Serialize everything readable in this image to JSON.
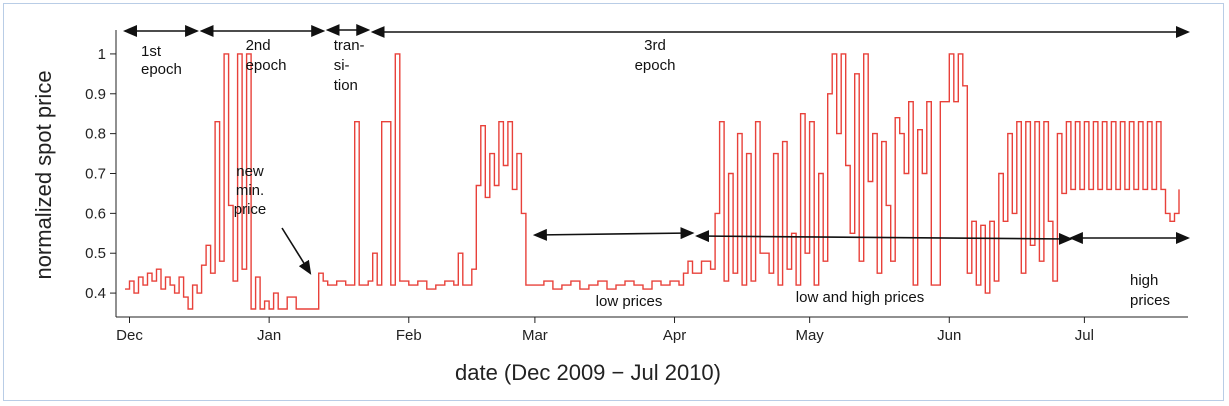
{
  "chart_data": {
    "type": "line",
    "xlabel": "date (Dec 2009 − Jul 2010)",
    "ylabel": "normalized spot price",
    "x_domain": [
      "2009-11-28",
      "2010-07-24"
    ],
    "ylim": [
      0.34,
      1.06
    ],
    "grid": false,
    "legend": "none",
    "x_ticks": [
      {
        "label": "Dec",
        "date": "2009-12-01"
      },
      {
        "label": "Jan",
        "date": "2010-01-01"
      },
      {
        "label": "Feb",
        "date": "2010-02-01"
      },
      {
        "label": "Mar",
        "date": "2010-03-01"
      },
      {
        "label": "Apr",
        "date": "2010-04-01"
      },
      {
        "label": "May",
        "date": "2010-05-01"
      },
      {
        "label": "Jun",
        "date": "2010-06-01"
      },
      {
        "label": "Jul",
        "date": "2010-07-01"
      }
    ],
    "y_ticks": [
      0.4,
      0.5,
      0.6,
      0.7,
      0.8,
      0.9,
      1
    ],
    "y_tick_labels": [
      "0.4",
      "0.5",
      "0.6",
      "0.7",
      "0.8",
      "0.9",
      "1"
    ],
    "series_color": "#e8413a",
    "series": [
      {
        "points": [
          [
            "2009-11-30",
            0.41
          ],
          [
            "2009-12-01",
            0.43
          ],
          [
            "2009-12-02",
            0.4
          ],
          [
            "2009-12-03",
            0.44
          ],
          [
            "2009-12-04",
            0.42
          ],
          [
            "2009-12-05",
            0.45
          ],
          [
            "2009-12-06",
            0.43
          ],
          [
            "2009-12-07",
            0.46
          ],
          [
            "2009-12-08",
            0.41
          ],
          [
            "2009-12-09",
            0.44
          ],
          [
            "2009-12-10",
            0.42
          ],
          [
            "2009-12-11",
            0.4
          ],
          [
            "2009-12-12",
            0.44
          ],
          [
            "2009-12-13",
            0.39
          ],
          [
            "2009-12-14",
            0.36
          ],
          [
            "2009-12-15",
            0.42
          ],
          [
            "2009-12-16",
            0.4
          ],
          [
            "2009-12-17",
            0.47
          ],
          [
            "2009-12-18",
            0.52
          ],
          [
            "2009-12-19",
            0.45
          ],
          [
            "2009-12-20",
            0.83
          ],
          [
            "2009-12-21",
            0.48
          ],
          [
            "2009-12-22",
            1.0
          ],
          [
            "2009-12-23",
            0.62
          ],
          [
            "2009-12-24",
            0.43
          ],
          [
            "2009-12-25",
            1.0
          ],
          [
            "2009-12-26",
            0.46
          ],
          [
            "2009-12-27",
            1.0
          ],
          [
            "2009-12-28",
            0.36
          ],
          [
            "2009-12-29",
            0.44
          ],
          [
            "2009-12-30",
            0.36
          ],
          [
            "2009-12-31",
            0.38
          ],
          [
            "2010-01-01",
            0.36
          ],
          [
            "2010-01-02",
            0.4
          ],
          [
            "2010-01-03",
            0.36
          ],
          [
            "2010-01-05",
            0.39
          ],
          [
            "2010-01-07",
            0.36
          ],
          [
            "2010-01-09",
            0.36
          ],
          [
            "2010-01-11",
            0.36
          ],
          [
            "2010-01-12",
            0.45
          ],
          [
            "2010-01-13",
            0.43
          ],
          [
            "2010-01-14",
            0.42
          ],
          [
            "2010-01-16",
            0.43
          ],
          [
            "2010-01-18",
            0.42
          ],
          [
            "2010-01-20",
            0.83
          ],
          [
            "2010-01-21",
            0.42
          ],
          [
            "2010-01-23",
            0.43
          ],
          [
            "2010-01-24",
            0.5
          ],
          [
            "2010-01-25",
            0.42
          ],
          [
            "2010-01-26",
            0.83
          ],
          [
            "2010-01-27",
            0.83
          ],
          [
            "2010-01-28",
            0.42
          ],
          [
            "2010-01-29",
            1.0
          ],
          [
            "2010-01-30",
            0.43
          ],
          [
            "2010-02-01",
            0.42
          ],
          [
            "2010-02-03",
            0.43
          ],
          [
            "2010-02-05",
            0.41
          ],
          [
            "2010-02-07",
            0.42
          ],
          [
            "2010-02-09",
            0.43
          ],
          [
            "2010-02-11",
            0.42
          ],
          [
            "2010-02-12",
            0.5
          ],
          [
            "2010-02-13",
            0.42
          ],
          [
            "2010-02-15",
            0.46
          ],
          [
            "2010-02-16",
            0.67
          ],
          [
            "2010-02-17",
            0.82
          ],
          [
            "2010-02-18",
            0.64
          ],
          [
            "2010-02-19",
            0.75
          ],
          [
            "2010-02-20",
            0.67
          ],
          [
            "2010-02-21",
            0.83
          ],
          [
            "2010-02-22",
            0.72
          ],
          [
            "2010-02-23",
            0.83
          ],
          [
            "2010-02-24",
            0.66
          ],
          [
            "2010-02-25",
            0.75
          ],
          [
            "2010-02-26",
            0.6
          ],
          [
            "2010-02-27",
            0.42
          ],
          [
            "2010-03-01",
            0.42
          ],
          [
            "2010-03-03",
            0.43
          ],
          [
            "2010-03-05",
            0.41
          ],
          [
            "2010-03-07",
            0.42
          ],
          [
            "2010-03-09",
            0.43
          ],
          [
            "2010-03-11",
            0.41
          ],
          [
            "2010-03-13",
            0.42
          ],
          [
            "2010-03-15",
            0.43
          ],
          [
            "2010-03-17",
            0.41
          ],
          [
            "2010-03-19",
            0.42
          ],
          [
            "2010-03-21",
            0.43
          ],
          [
            "2010-03-23",
            0.42
          ],
          [
            "2010-03-25",
            0.41
          ],
          [
            "2010-03-27",
            0.43
          ],
          [
            "2010-03-29",
            0.42
          ],
          [
            "2010-03-31",
            0.43
          ],
          [
            "2010-04-02",
            0.42
          ],
          [
            "2010-04-03",
            0.45
          ],
          [
            "2010-04-04",
            0.48
          ],
          [
            "2010-04-05",
            0.45
          ],
          [
            "2010-04-07",
            0.48
          ],
          [
            "2010-04-09",
            0.46
          ],
          [
            "2010-04-10",
            0.6
          ],
          [
            "2010-04-11",
            0.83
          ],
          [
            "2010-04-12",
            0.43
          ],
          [
            "2010-04-13",
            0.7
          ],
          [
            "2010-04-14",
            0.45
          ],
          [
            "2010-04-15",
            0.8
          ],
          [
            "2010-04-16",
            0.42
          ],
          [
            "2010-04-17",
            0.75
          ],
          [
            "2010-04-18",
            0.43
          ],
          [
            "2010-04-19",
            0.83
          ],
          [
            "2010-04-20",
            0.5
          ],
          [
            "2010-04-22",
            0.45
          ],
          [
            "2010-04-23",
            0.75
          ],
          [
            "2010-04-24",
            0.42
          ],
          [
            "2010-04-25",
            0.78
          ],
          [
            "2010-04-26",
            0.46
          ],
          [
            "2010-04-27",
            0.55
          ],
          [
            "2010-04-28",
            0.42
          ],
          [
            "2010-04-29",
            0.85
          ],
          [
            "2010-04-30",
            0.5
          ],
          [
            "2010-05-01",
            0.83
          ],
          [
            "2010-05-02",
            0.42
          ],
          [
            "2010-05-03",
            0.7
          ],
          [
            "2010-05-04",
            0.48
          ],
          [
            "2010-05-05",
            0.9
          ],
          [
            "2010-05-06",
            1.0
          ],
          [
            "2010-05-07",
            0.8
          ],
          [
            "2010-05-08",
            1.0
          ],
          [
            "2010-05-09",
            0.72
          ],
          [
            "2010-05-10",
            0.55
          ],
          [
            "2010-05-11",
            0.95
          ],
          [
            "2010-05-12",
            0.48
          ],
          [
            "2010-05-13",
            1.0
          ],
          [
            "2010-05-14",
            0.68
          ],
          [
            "2010-05-15",
            0.8
          ],
          [
            "2010-05-16",
            0.45
          ],
          [
            "2010-05-17",
            0.78
          ],
          [
            "2010-05-18",
            0.62
          ],
          [
            "2010-05-19",
            0.48
          ],
          [
            "2010-05-20",
            0.84
          ],
          [
            "2010-05-21",
            0.8
          ],
          [
            "2010-05-22",
            0.7
          ],
          [
            "2010-05-23",
            0.88
          ],
          [
            "2010-05-24",
            0.42
          ],
          [
            "2010-05-25",
            0.81
          ],
          [
            "2010-05-26",
            0.7
          ],
          [
            "2010-05-27",
            0.88
          ],
          [
            "2010-05-28",
            0.42
          ],
          [
            "2010-05-30",
            0.88
          ],
          [
            "2010-06-01",
            1.0
          ],
          [
            "2010-06-02",
            0.88
          ],
          [
            "2010-06-03",
            1.0
          ],
          [
            "2010-06-04",
            0.92
          ],
          [
            "2010-06-05",
            0.45
          ],
          [
            "2010-06-06",
            0.58
          ],
          [
            "2010-06-07",
            0.42
          ],
          [
            "2010-06-08",
            0.57
          ],
          [
            "2010-06-09",
            0.4
          ],
          [
            "2010-06-10",
            0.58
          ],
          [
            "2010-06-11",
            0.43
          ],
          [
            "2010-06-12",
            0.7
          ],
          [
            "2010-06-13",
            0.58
          ],
          [
            "2010-06-14",
            0.8
          ],
          [
            "2010-06-15",
            0.6
          ],
          [
            "2010-06-16",
            0.83
          ],
          [
            "2010-06-17",
            0.45
          ],
          [
            "2010-06-18",
            0.83
          ],
          [
            "2010-06-19",
            0.52
          ],
          [
            "2010-06-20",
            0.83
          ],
          [
            "2010-06-21",
            0.48
          ],
          [
            "2010-06-22",
            0.83
          ],
          [
            "2010-06-23",
            0.58
          ],
          [
            "2010-06-24",
            0.43
          ],
          [
            "2010-06-25",
            0.8
          ],
          [
            "2010-06-26",
            0.65
          ],
          [
            "2010-06-27",
            0.83
          ],
          [
            "2010-06-28",
            0.66
          ],
          [
            "2010-06-29",
            0.83
          ],
          [
            "2010-06-30",
            0.66
          ],
          [
            "2010-07-01",
            0.83
          ],
          [
            "2010-07-02",
            0.66
          ],
          [
            "2010-07-03",
            0.83
          ],
          [
            "2010-07-04",
            0.66
          ],
          [
            "2010-07-05",
            0.83
          ],
          [
            "2010-07-06",
            0.66
          ],
          [
            "2010-07-07",
            0.83
          ],
          [
            "2010-07-08",
            0.66
          ],
          [
            "2010-07-09",
            0.83
          ],
          [
            "2010-07-10",
            0.66
          ],
          [
            "2010-07-11",
            0.83
          ],
          [
            "2010-07-12",
            0.66
          ],
          [
            "2010-07-13",
            0.83
          ],
          [
            "2010-07-14",
            0.66
          ],
          [
            "2010-07-15",
            0.83
          ],
          [
            "2010-07-16",
            0.66
          ],
          [
            "2010-07-17",
            0.83
          ],
          [
            "2010-07-18",
            0.66
          ],
          [
            "2010-07-19",
            0.6
          ],
          [
            "2010-07-20",
            0.58
          ],
          [
            "2010-07-21",
            0.6
          ],
          [
            "2010-07-22",
            0.66
          ]
        ]
      }
    ],
    "annotations": [
      {
        "lines": [
          "1st",
          "epoch"
        ],
        "span": [
          "2009-11-30",
          "2009-12-16"
        ]
      },
      {
        "lines": [
          "2nd",
          "epoch"
        ],
        "span": [
          "2009-12-17",
          "2010-01-13"
        ]
      },
      {
        "lines": [
          "tran-",
          "si-",
          "tion"
        ],
        "span": [
          "2010-01-14",
          "2010-01-23"
        ]
      },
      {
        "lines": [
          "3rd",
          "epoch"
        ],
        "span": [
          "2010-01-24",
          "2010-07-24"
        ]
      },
      {
        "lines": [
          "new",
          "min.",
          "price"
        ],
        "points_to": [
          "2010-01-11",
          0.43
        ]
      },
      {
        "lines": [
          "low prices"
        ],
        "span": [
          "2010-03-01",
          "2010-04-05"
        ]
      },
      {
        "lines": [
          "low and high prices"
        ],
        "span": [
          "2010-04-06",
          "2010-06-28"
        ]
      },
      {
        "lines": [
          "high",
          "prices"
        ],
        "span": [
          "2010-06-28",
          "2010-07-24"
        ]
      }
    ]
  }
}
